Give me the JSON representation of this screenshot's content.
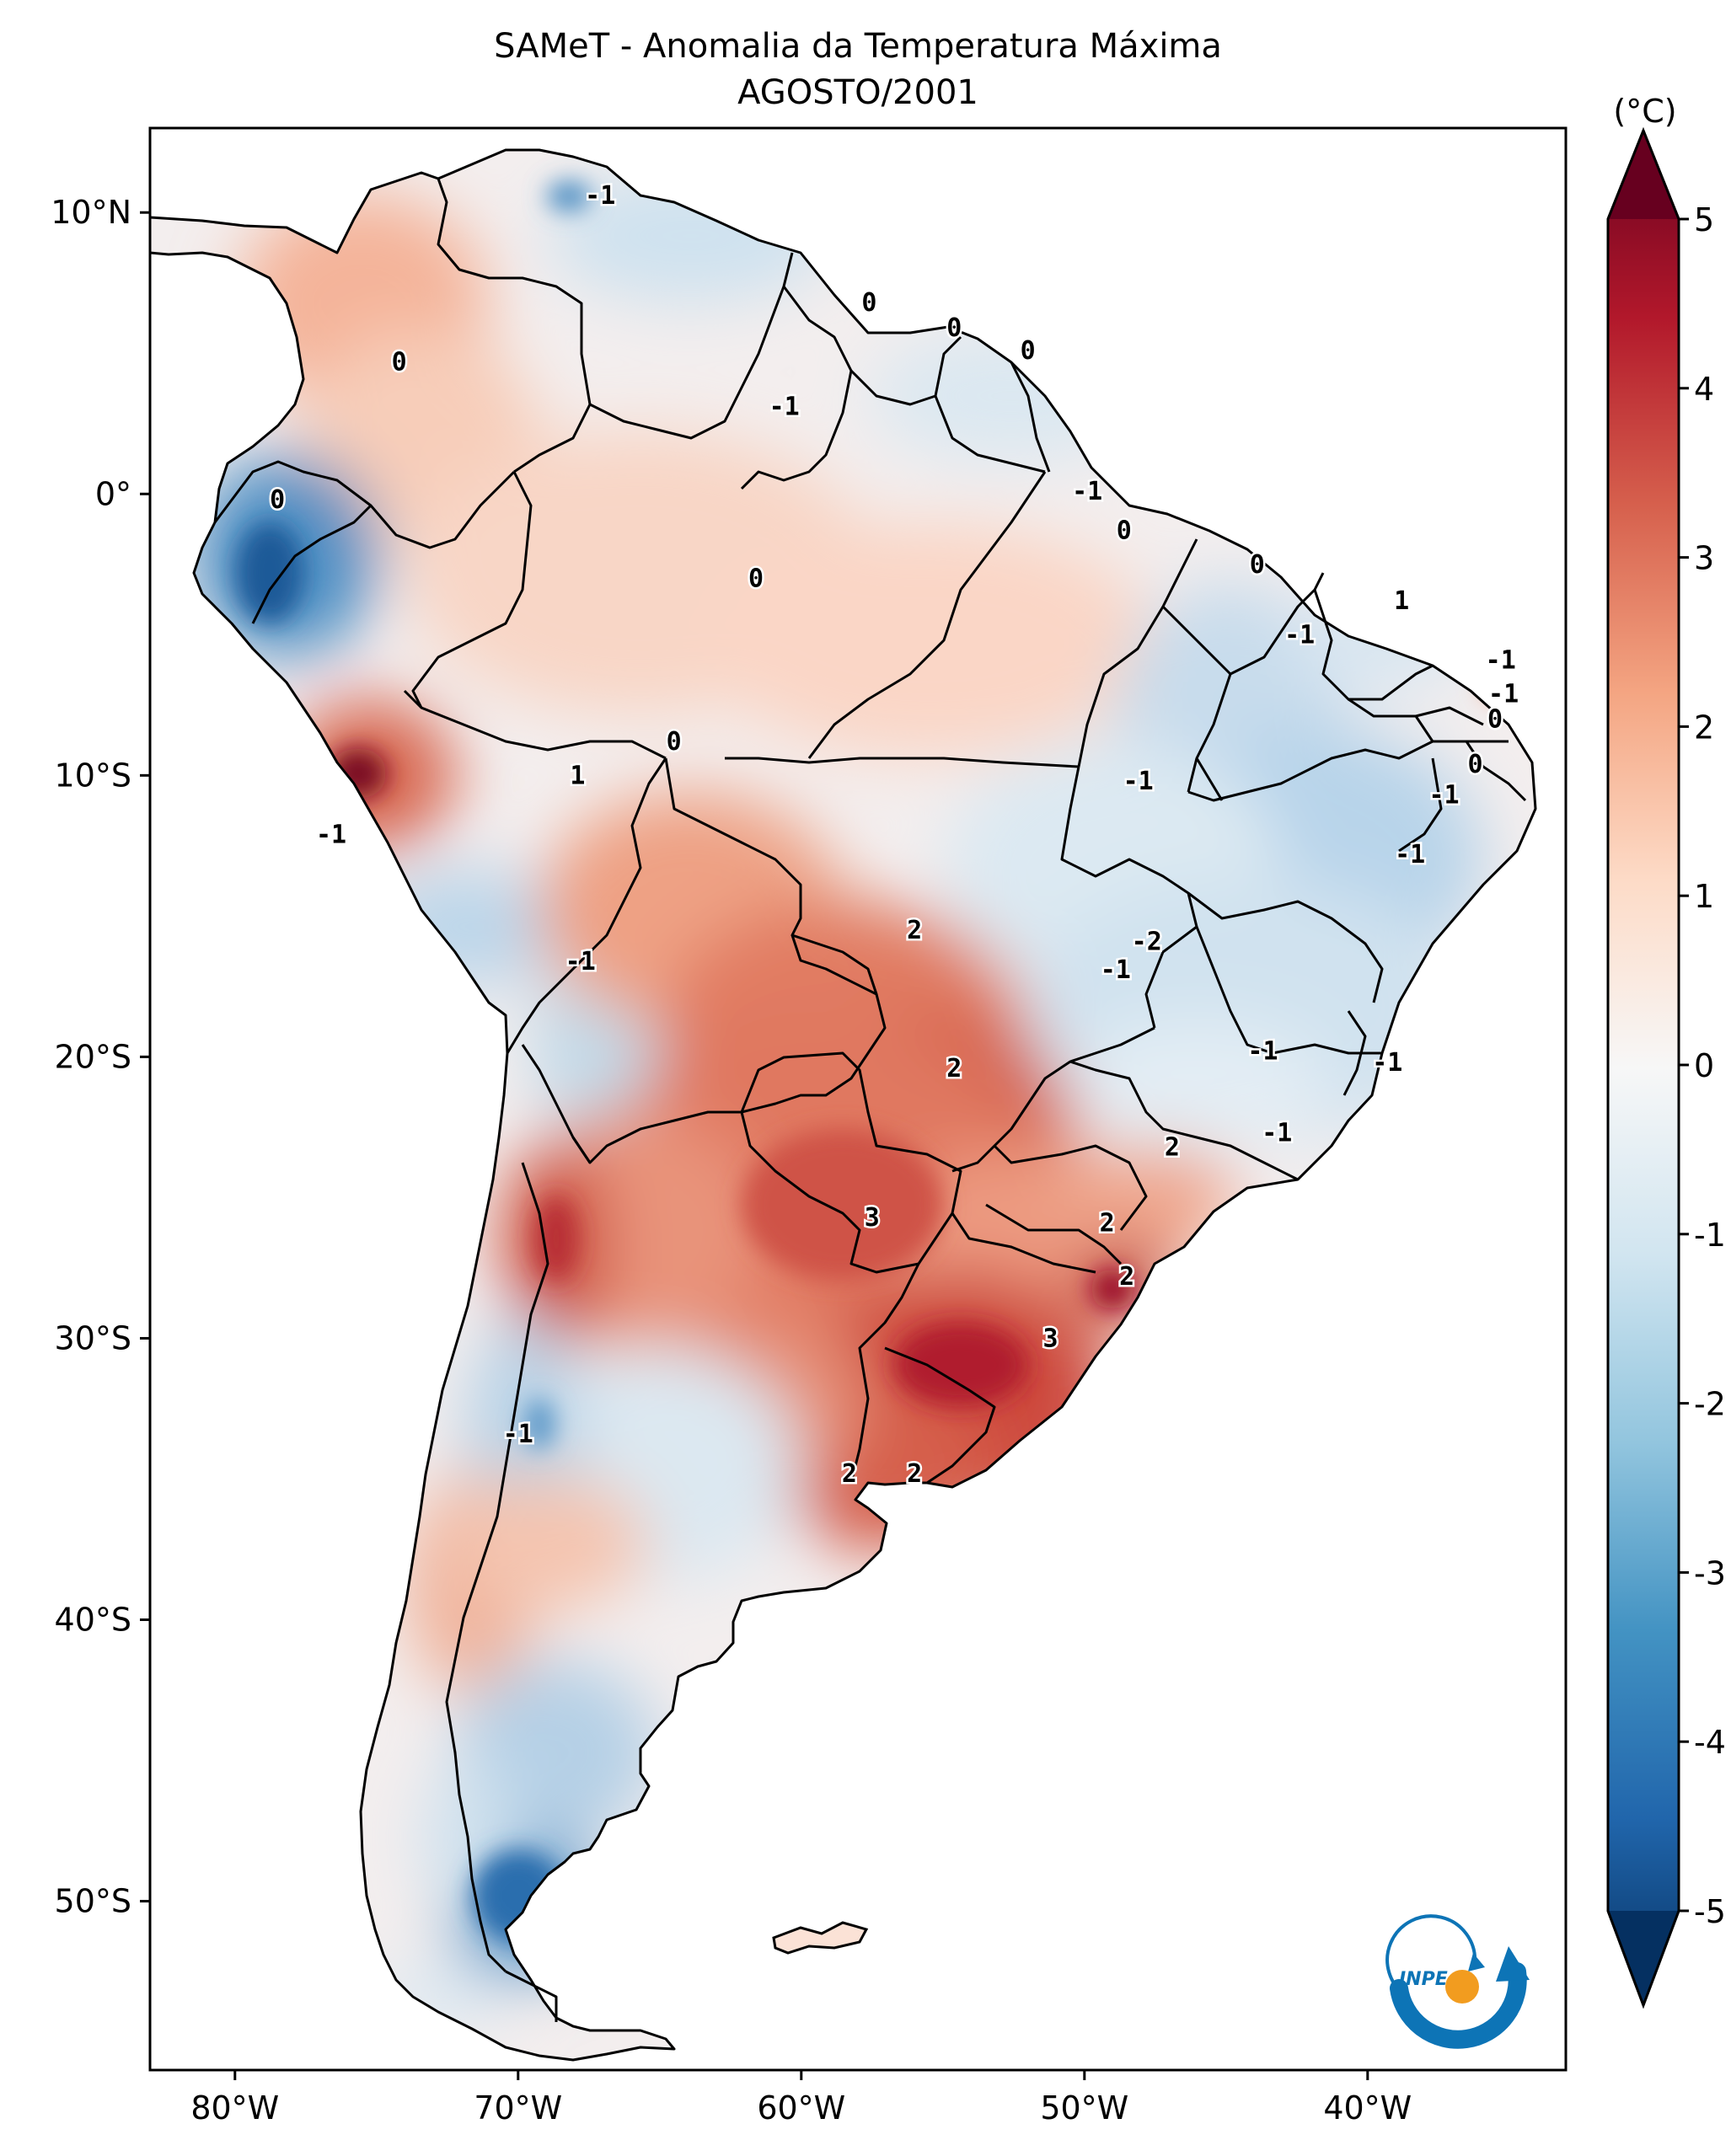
{
  "title_line1": "SAMeT - Anomalia da Temperatura Máxima",
  "title_line2": "AGOSTO/2001",
  "colorbar": {
    "unit": "(°C)",
    "ticks": [
      {
        "label": "5",
        "value": 5
      },
      {
        "label": "4",
        "value": 4
      },
      {
        "label": "3",
        "value": 3
      },
      {
        "label": "2",
        "value": 2
      },
      {
        "label": "1",
        "value": 1
      },
      {
        "label": "0",
        "value": 0
      },
      {
        "label": "-1",
        "value": -1
      },
      {
        "label": "-2",
        "value": -2
      },
      {
        "label": "-3",
        "value": -3
      },
      {
        "label": "-4",
        "value": -4
      },
      {
        "label": "-5",
        "value": -5
      }
    ],
    "colors": [
      "#053061",
      "#2166ac",
      "#4393c3",
      "#92c5de",
      "#d1e5f0",
      "#f7f7f7",
      "#fddbc7",
      "#f4a582",
      "#d6604d",
      "#b2182b",
      "#67001f"
    ]
  },
  "axes": {
    "lon_ticks": [
      {
        "label": "80°W",
        "value": -80
      },
      {
        "label": "70°W",
        "value": -70
      },
      {
        "label": "60°W",
        "value": -60
      },
      {
        "label": "50°W",
        "value": -50
      },
      {
        "label": "40°W",
        "value": -40
      }
    ],
    "lat_ticks": [
      {
        "label": "10°N",
        "value": 10
      },
      {
        "label": "0°",
        "value": 0
      },
      {
        "label": "10°S",
        "value": -10
      },
      {
        "label": "20°S",
        "value": -20
      },
      {
        "label": "30°S",
        "value": -30
      },
      {
        "label": "40°S",
        "value": -40
      },
      {
        "label": "50°S",
        "value": -50
      }
    ],
    "lon_range": [
      -83,
      -33
    ],
    "lat_range": [
      -56,
      13
    ]
  },
  "contour_labels": [
    {
      "text": "-1",
      "lon": -67.1,
      "lat": 10.6
    },
    {
      "text": "0",
      "lon": -74.2,
      "lat": 4.7
    },
    {
      "text": "0",
      "lon": -57.6,
      "lat": 6.8
    },
    {
      "text": "0",
      "lon": -54.6,
      "lat": 5.9
    },
    {
      "text": "0",
      "lon": -52.0,
      "lat": 5.1
    },
    {
      "text": "-1",
      "lon": -60.6,
      "lat": 3.1
    },
    {
      "text": "-1",
      "lon": -49.9,
      "lat": 0.1
    },
    {
      "text": "0",
      "lon": -48.6,
      "lat": -1.3
    },
    {
      "text": "0",
      "lon": -78.5,
      "lat": -0.2
    },
    {
      "text": "0",
      "lon": -61.6,
      "lat": -3.0
    },
    {
      "text": "0",
      "lon": -43.9,
      "lat": -2.5
    },
    {
      "text": "1",
      "lon": -38.8,
      "lat": -3.8
    },
    {
      "text": "-1",
      "lon": -42.4,
      "lat": -5.0
    },
    {
      "text": "-1",
      "lon": -35.3,
      "lat": -5.9
    },
    {
      "text": "-1",
      "lon": -35.2,
      "lat": -7.1
    },
    {
      "text": "0",
      "lon": -35.5,
      "lat": -8.0
    },
    {
      "text": "0",
      "lon": -36.2,
      "lat": -9.6
    },
    {
      "text": "-1",
      "lon": -37.3,
      "lat": -10.7
    },
    {
      "text": "0",
      "lon": -64.5,
      "lat": -8.8
    },
    {
      "text": "1",
      "lon": -67.9,
      "lat": -10.0
    },
    {
      "text": "-1",
      "lon": -76.6,
      "lat": -12.1
    },
    {
      "text": "-1",
      "lon": -48.1,
      "lat": -10.2
    },
    {
      "text": "-1",
      "lon": -38.5,
      "lat": -12.8
    },
    {
      "text": "2",
      "lon": -56.0,
      "lat": -15.5
    },
    {
      "text": "-2",
      "lon": -47.8,
      "lat": -15.9
    },
    {
      "text": "-1",
      "lon": -48.9,
      "lat": -16.9
    },
    {
      "text": "-1",
      "lon": -67.8,
      "lat": -16.6
    },
    {
      "text": "2",
      "lon": -54.6,
      "lat": -20.4
    },
    {
      "text": "-1",
      "lon": -43.7,
      "lat": -19.8
    },
    {
      "text": "-1",
      "lon": -39.3,
      "lat": -20.2
    },
    {
      "text": "2",
      "lon": -46.9,
      "lat": -23.2
    },
    {
      "text": "-1",
      "lon": -43.2,
      "lat": -22.7
    },
    {
      "text": "3",
      "lon": -57.5,
      "lat": -25.7
    },
    {
      "text": "2",
      "lon": -49.2,
      "lat": -25.9
    },
    {
      "text": "2",
      "lon": -48.5,
      "lat": -27.8
    },
    {
      "text": "3",
      "lon": -51.2,
      "lat": -30.0
    },
    {
      "text": "-1",
      "lon": -70.0,
      "lat": -33.4
    },
    {
      "text": "2",
      "lon": -58.3,
      "lat": -34.8
    },
    {
      "text": "2",
      "lon": -56.0,
      "lat": -34.8
    }
  ]
}
